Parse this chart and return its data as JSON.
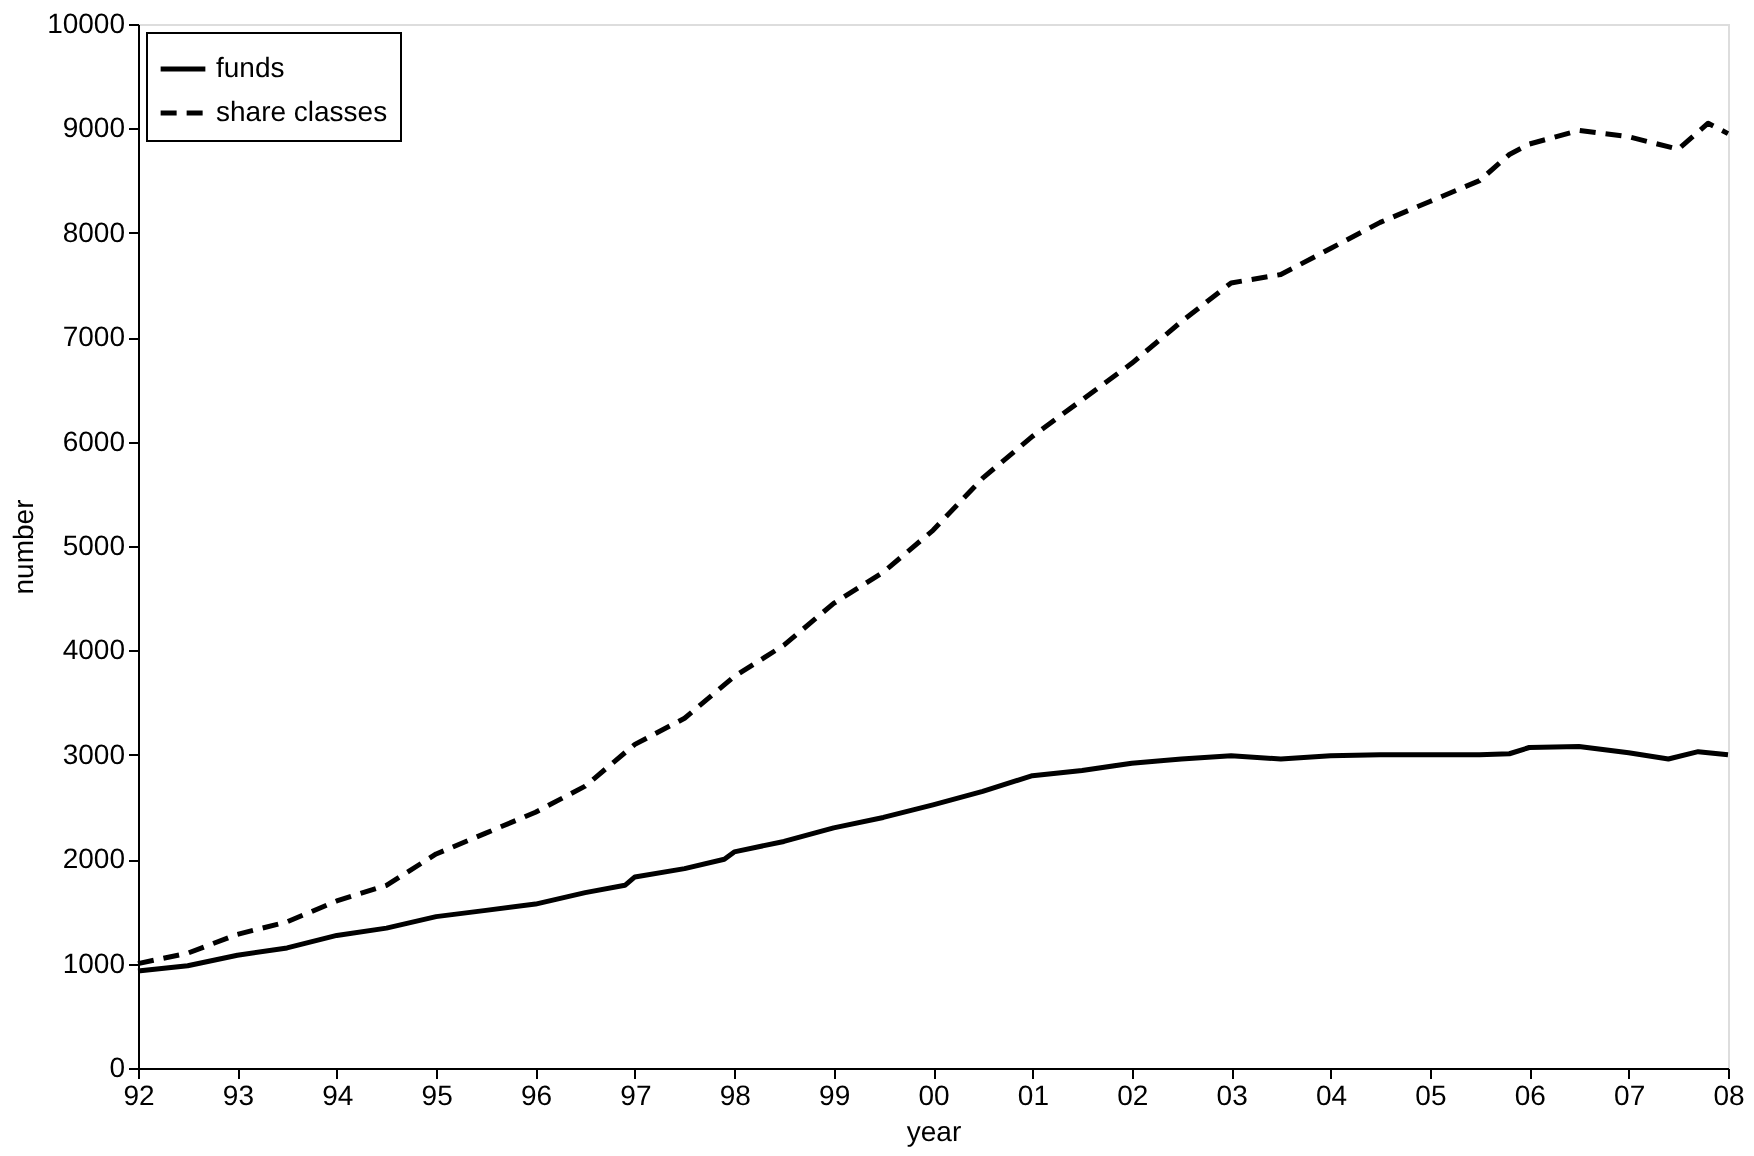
{
  "chart_data": {
    "type": "line",
    "xlabel": "year",
    "ylabel": "number",
    "xlim": [
      1992,
      2008
    ],
    "ylim": [
      0,
      10000
    ],
    "xticks": [
      {
        "value": 1992,
        "label": "92"
      },
      {
        "value": 1993,
        "label": "93"
      },
      {
        "value": 1994,
        "label": "94"
      },
      {
        "value": 1995,
        "label": "95"
      },
      {
        "value": 1996,
        "label": "96"
      },
      {
        "value": 1997,
        "label": "97"
      },
      {
        "value": 1998,
        "label": "98"
      },
      {
        "value": 1999,
        "label": "99"
      },
      {
        "value": 2000,
        "label": "00"
      },
      {
        "value": 2001,
        "label": "01"
      },
      {
        "value": 2002,
        "label": "02"
      },
      {
        "value": 2003,
        "label": "03"
      },
      {
        "value": 2004,
        "label": "04"
      },
      {
        "value": 2005,
        "label": "05"
      },
      {
        "value": 2006,
        "label": "06"
      },
      {
        "value": 2007,
        "label": "07"
      },
      {
        "value": 2008,
        "label": "08"
      }
    ],
    "yticks": [
      0,
      1000,
      2000,
      3000,
      4000,
      5000,
      6000,
      7000,
      8000,
      9000,
      10000
    ],
    "grid": false,
    "legend": "top left",
    "marker": "none",
    "series": [
      {
        "name": "funds",
        "color": "#000000",
        "line_style": "solid",
        "x": [
          1992,
          1992.5,
          1993,
          1993.5,
          1994,
          1994.5,
          1995,
          1995.5,
          1996,
          1996.5,
          1996.9,
          1997,
          1997.5,
          1997.9,
          1998,
          1998.5,
          1999,
          1999.5,
          2000,
          2000.5,
          2001,
          2001.5,
          2002,
          2002.5,
          2003,
          2003.5,
          2004,
          2004.5,
          2005,
          2005.5,
          2005.8,
          2006,
          2006.5,
          2007,
          2007.4,
          2007.7,
          2008
        ],
        "values": [
          930,
          980,
          1080,
          1150,
          1270,
          1340,
          1450,
          1510,
          1570,
          1680,
          1750,
          1830,
          1910,
          2000,
          2070,
          2170,
          2300,
          2400,
          2520,
          2650,
          2800,
          2850,
          2920,
          2960,
          2990,
          2960,
          2990,
          3000,
          3000,
          3000,
          3010,
          3070,
          3080,
          3020,
          2960,
          3030,
          3000
        ]
      },
      {
        "name": "share classes",
        "color": "#000000",
        "line_style": "dashed",
        "x": [
          1992,
          1992.5,
          1993,
          1993.5,
          1994,
          1994.5,
          1995,
          1995.5,
          1996,
          1996.5,
          1997,
          1997.5,
          1998,
          1998.5,
          1999,
          1999.5,
          2000,
          2000.5,
          2001,
          2001.5,
          2002,
          2002.5,
          2003,
          2003.5,
          2004,
          2004.5,
          2005,
          2005.5,
          2005.8,
          2006,
          2006.5,
          2007,
          2007.5,
          2007.8,
          2008
        ],
        "values": [
          1000,
          1100,
          1280,
          1400,
          1600,
          1750,
          2050,
          2250,
          2450,
          2700,
          3100,
          3350,
          3750,
          4050,
          4450,
          4750,
          5150,
          5650,
          6050,
          6400,
          6750,
          7150,
          7520,
          7600,
          7850,
          8100,
          8300,
          8500,
          8750,
          8850,
          8980,
          8920,
          8800,
          9050,
          8950
        ]
      }
    ]
  }
}
